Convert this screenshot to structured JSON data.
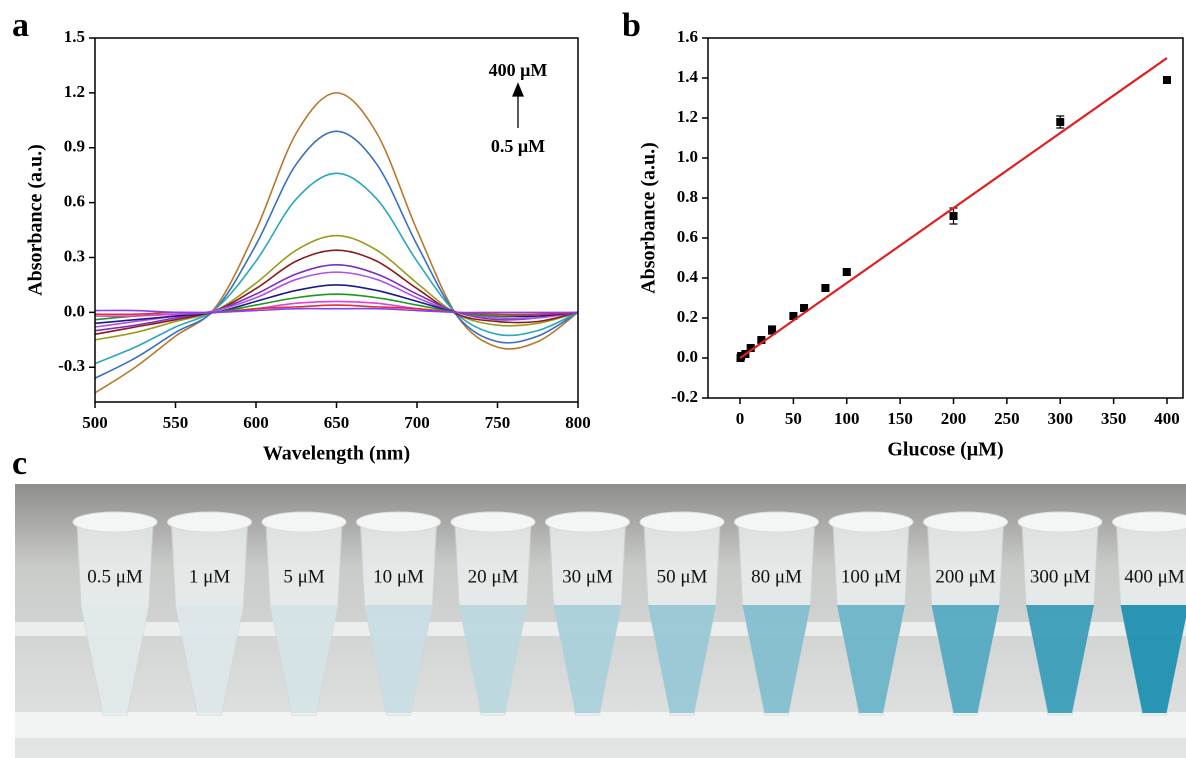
{
  "chart_data": [
    {
      "type": "line",
      "panel_label": "a",
      "xlabel": "Wavelength (nm)",
      "ylabel": "Absorbance (a.u.)",
      "annotations": [
        "400 μM",
        "0.5 μM"
      ],
      "x": [
        500,
        525,
        550,
        575,
        600,
        625,
        650,
        675,
        700,
        725,
        750,
        775,
        800
      ],
      "xlim": [
        500,
        800
      ],
      "xticks": [
        500,
        550,
        600,
        650,
        700,
        750,
        800
      ],
      "ylim": [
        -0.49,
        1.5
      ],
      "yticks": [
        -0.3,
        {
          "value": 0,
          "label": "0.0"
        },
        0.3,
        0.6,
        0.9,
        1.2,
        1.5
      ],
      "series": [
        {
          "color": "#b8782e",
          "values": [
            -0.44,
            -0.3,
            -0.13,
            0.03,
            0.45,
            0.98,
            1.2,
            0.98,
            0.45,
            -0.02,
            -0.19,
            -0.16,
            0.0
          ]
        },
        {
          "color": "#3a6fc0",
          "values": [
            -0.36,
            -0.25,
            -0.11,
            0.02,
            0.37,
            0.81,
            0.99,
            0.81,
            0.37,
            -0.02,
            -0.16,
            -0.13,
            0.0
          ]
        },
        {
          "color": "#2aa7b8",
          "values": [
            -0.28,
            -0.19,
            -0.08,
            0.02,
            0.28,
            0.62,
            0.76,
            0.62,
            0.28,
            -0.01,
            -0.12,
            -0.1,
            0.0
          ]
        },
        {
          "color": "#9a9a1a",
          "values": [
            -0.15,
            -0.11,
            -0.05,
            0.01,
            0.16,
            0.34,
            0.42,
            0.34,
            0.16,
            -0.01,
            -0.07,
            -0.06,
            0.0
          ]
        },
        {
          "color": "#8b1a1a",
          "values": [
            -0.12,
            -0.08,
            -0.04,
            0.01,
            0.13,
            0.28,
            0.34,
            0.28,
            0.13,
            -0.01,
            -0.05,
            -0.05,
            0.0
          ]
        },
        {
          "color": "#7b2fc0",
          "values": [
            -0.1,
            -0.07,
            -0.03,
            0.01,
            0.1,
            0.21,
            0.26,
            0.21,
            0.1,
            0.0,
            -0.04,
            -0.03,
            0.0
          ]
        },
        {
          "color": "#b050e0",
          "values": [
            -0.08,
            -0.05,
            -0.02,
            0.01,
            0.08,
            0.18,
            0.22,
            0.18,
            0.08,
            0.0,
            -0.03,
            -0.03,
            0.0
          ]
        },
        {
          "color": "#1a1a8a",
          "values": [
            -0.06,
            -0.04,
            -0.02,
            0.0,
            0.06,
            0.12,
            0.15,
            0.12,
            0.06,
            0.0,
            -0.02,
            -0.02,
            0.0
          ]
        },
        {
          "color": "#1a9a1a",
          "values": [
            -0.04,
            -0.02,
            -0.01,
            0.0,
            0.04,
            0.08,
            0.1,
            0.08,
            0.04,
            0.0,
            -0.02,
            -0.01,
            0.0
          ]
        },
        {
          "color": "#e040e0",
          "values": [
            -0.02,
            -0.02,
            -0.01,
            0.0,
            0.02,
            0.05,
            0.06,
            0.05,
            0.02,
            0.0,
            -0.01,
            -0.01,
            0.0
          ]
        },
        {
          "color": "#e03030",
          "values": [
            -0.01,
            -0.01,
            0.0,
            0.0,
            0.02,
            0.03,
            0.04,
            0.03,
            0.02,
            0.0,
            -0.01,
            -0.01,
            0.0
          ]
        },
        {
          "color": "#8040ff",
          "values": [
            0.01,
            0.01,
            0.0,
            0.0,
            0.01,
            0.02,
            0.02,
            0.02,
            0.01,
            0.0,
            0.0,
            0.0,
            0.0
          ]
        }
      ]
    },
    {
      "type": "scatter",
      "panel_label": "b",
      "xlabel": "Glucose (μM)",
      "ylabel": "Absorbance (a.u.)",
      "xlim": [
        -30,
        415
      ],
      "xticks": [
        0,
        50,
        100,
        150,
        200,
        250,
        300,
        350,
        400
      ],
      "ylim": [
        -0.2,
        1.6
      ],
      "yticks": [
        -0.2,
        {
          "value": 0,
          "label": "0.0"
        },
        0.2,
        0.4,
        0.6,
        0.8,
        {
          "value": 1,
          "label": "1.0"
        },
        1.2,
        1.4,
        1.6
      ],
      "series": [
        {
          "type": "scatter",
          "color": "#000000",
          "x": [
            0.5,
            1,
            5,
            10,
            20,
            30,
            50,
            60,
            80,
            100,
            200,
            300,
            400
          ],
          "values": [
            0.0,
            0.01,
            0.02,
            0.05,
            0.09,
            0.14,
            0.21,
            0.25,
            0.35,
            0.43,
            0.71,
            1.18,
            1.39
          ],
          "errors": [
            0.01,
            0.01,
            0.01,
            0.01,
            0.01,
            0.02,
            0.01,
            0.01,
            0.01,
            0.01,
            0.04,
            0.03,
            0.01
          ]
        },
        {
          "type": "line",
          "color": "#e02020",
          "x": [
            0,
            400
          ],
          "values": [
            0.0,
            1.5
          ]
        }
      ]
    }
  ],
  "photo": {
    "panel_label": "c",
    "tube_labels": [
      "0.5 μM",
      "1 μM",
      "5 μM",
      "10 μM",
      "20 μM",
      "30 μM",
      "50 μM",
      "80 μM",
      "100 μM",
      "200 μM",
      "300 μM",
      "400 μM"
    ]
  }
}
